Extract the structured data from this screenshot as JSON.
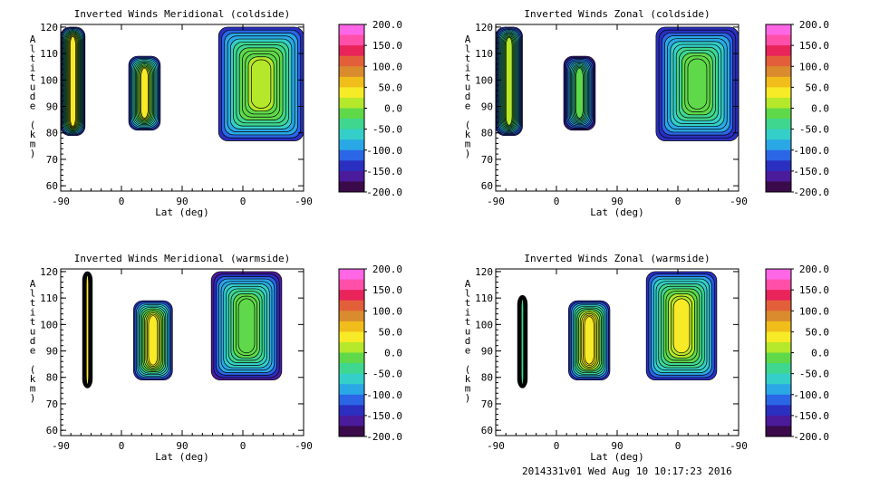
{
  "footer": "2014331v01 Wed Aug 10 10:17:23 2016",
  "colorbar": {
    "labels": [
      "200.0",
      "150.0",
      "100.0",
      "50.0",
      "0.0",
      "-50.0",
      "-100.0",
      "-150.0",
      "-200.0"
    ],
    "colors": [
      "#ff66e6",
      "#ff4fa8",
      "#e8245a",
      "#e35f3a",
      "#d98b2e",
      "#f0bd1a",
      "#f7ea26",
      "#b5e82a",
      "#5fd94a",
      "#3fd690",
      "#34cfc8",
      "#2aa8e6",
      "#2a66e6",
      "#2a2fc0",
      "#4a1b9a",
      "#3a0a4a"
    ]
  },
  "chart_data": [
    {
      "type": "heatmap",
      "title": "Inverted Winds Meridional (coldside)",
      "xlabel": "Lat (deg)",
      "ylabel": "Altitude (km)",
      "xtick_labels": [
        "-90",
        "0",
        "90",
        "0",
        "-90"
      ],
      "yticks": [
        60,
        70,
        80,
        90,
        100,
        110,
        120
      ],
      "ylim": [
        58,
        121
      ],
      "zlim": [
        -200,
        200
      ],
      "blobs": [
        {
          "x": [
            0.0,
            0.1
          ],
          "alt": [
            79,
            120
          ],
          "peak": 40
        },
        {
          "x": [
            0.28,
            0.41
          ],
          "alt": [
            81,
            109
          ],
          "peak": 30
        },
        {
          "x": [
            0.65,
            1.0
          ],
          "alt": [
            77,
            120
          ],
          "peak": 20
        }
      ]
    },
    {
      "type": "heatmap",
      "title": "Inverted Winds Zonal (coldside)",
      "xlabel": "Lat (deg)",
      "ylabel": "Altitude (km)",
      "xtick_labels": [
        "-90",
        "0",
        "90",
        "0",
        "-90"
      ],
      "yticks": [
        60,
        70,
        80,
        90,
        100,
        110,
        120
      ],
      "ylim": [
        58,
        121
      ],
      "zlim": [
        -200,
        200
      ],
      "blobs": [
        {
          "x": [
            0.0,
            0.11
          ],
          "alt": [
            79,
            120
          ],
          "peak": 5
        },
        {
          "x": [
            0.28,
            0.41
          ],
          "alt": [
            81,
            109
          ],
          "peak": -20
        },
        {
          "x": [
            0.66,
            1.0
          ],
          "alt": [
            77,
            120
          ],
          "peak": 0
        }
      ]
    },
    {
      "type": "heatmap",
      "title": "Inverted Winds Meridional (warmside)",
      "xlabel": "Lat (deg)",
      "ylabel": "Altitude (km)",
      "xtick_labels": [
        "-90",
        "0",
        "90",
        "0",
        "-90"
      ],
      "yticks": [
        60,
        70,
        80,
        90,
        100,
        110,
        120
      ],
      "ylim": [
        58,
        121
      ],
      "zlim": [
        -200,
        200
      ],
      "blobs": [
        {
          "x": [
            0.09,
            0.13
          ],
          "alt": [
            76,
            120
          ],
          "peak": 30
        },
        {
          "x": [
            0.3,
            0.46
          ],
          "alt": [
            79,
            109
          ],
          "peak": 40
        },
        {
          "x": [
            0.62,
            0.91
          ],
          "alt": [
            79,
            120
          ],
          "peak": -5
        }
      ]
    },
    {
      "type": "heatmap",
      "title": "Inverted Winds Zonal (warmside)",
      "xlabel": "Lat (deg)",
      "ylabel": "Altitude (km)",
      "xtick_labels": [
        "-90",
        "0",
        "90",
        "0",
        "-90"
      ],
      "yticks": [
        60,
        70,
        80,
        90,
        100,
        110,
        120
      ],
      "ylim": [
        58,
        121
      ],
      "zlim": [
        -200,
        200
      ],
      "blobs": [
        {
          "x": [
            0.09,
            0.13
          ],
          "alt": [
            76,
            111
          ],
          "peak": -40
        },
        {
          "x": [
            0.3,
            0.47
          ],
          "alt": [
            79,
            109
          ],
          "peak": 50
        },
        {
          "x": [
            0.62,
            0.91
          ],
          "alt": [
            79,
            120
          ],
          "peak": 30
        }
      ]
    }
  ]
}
